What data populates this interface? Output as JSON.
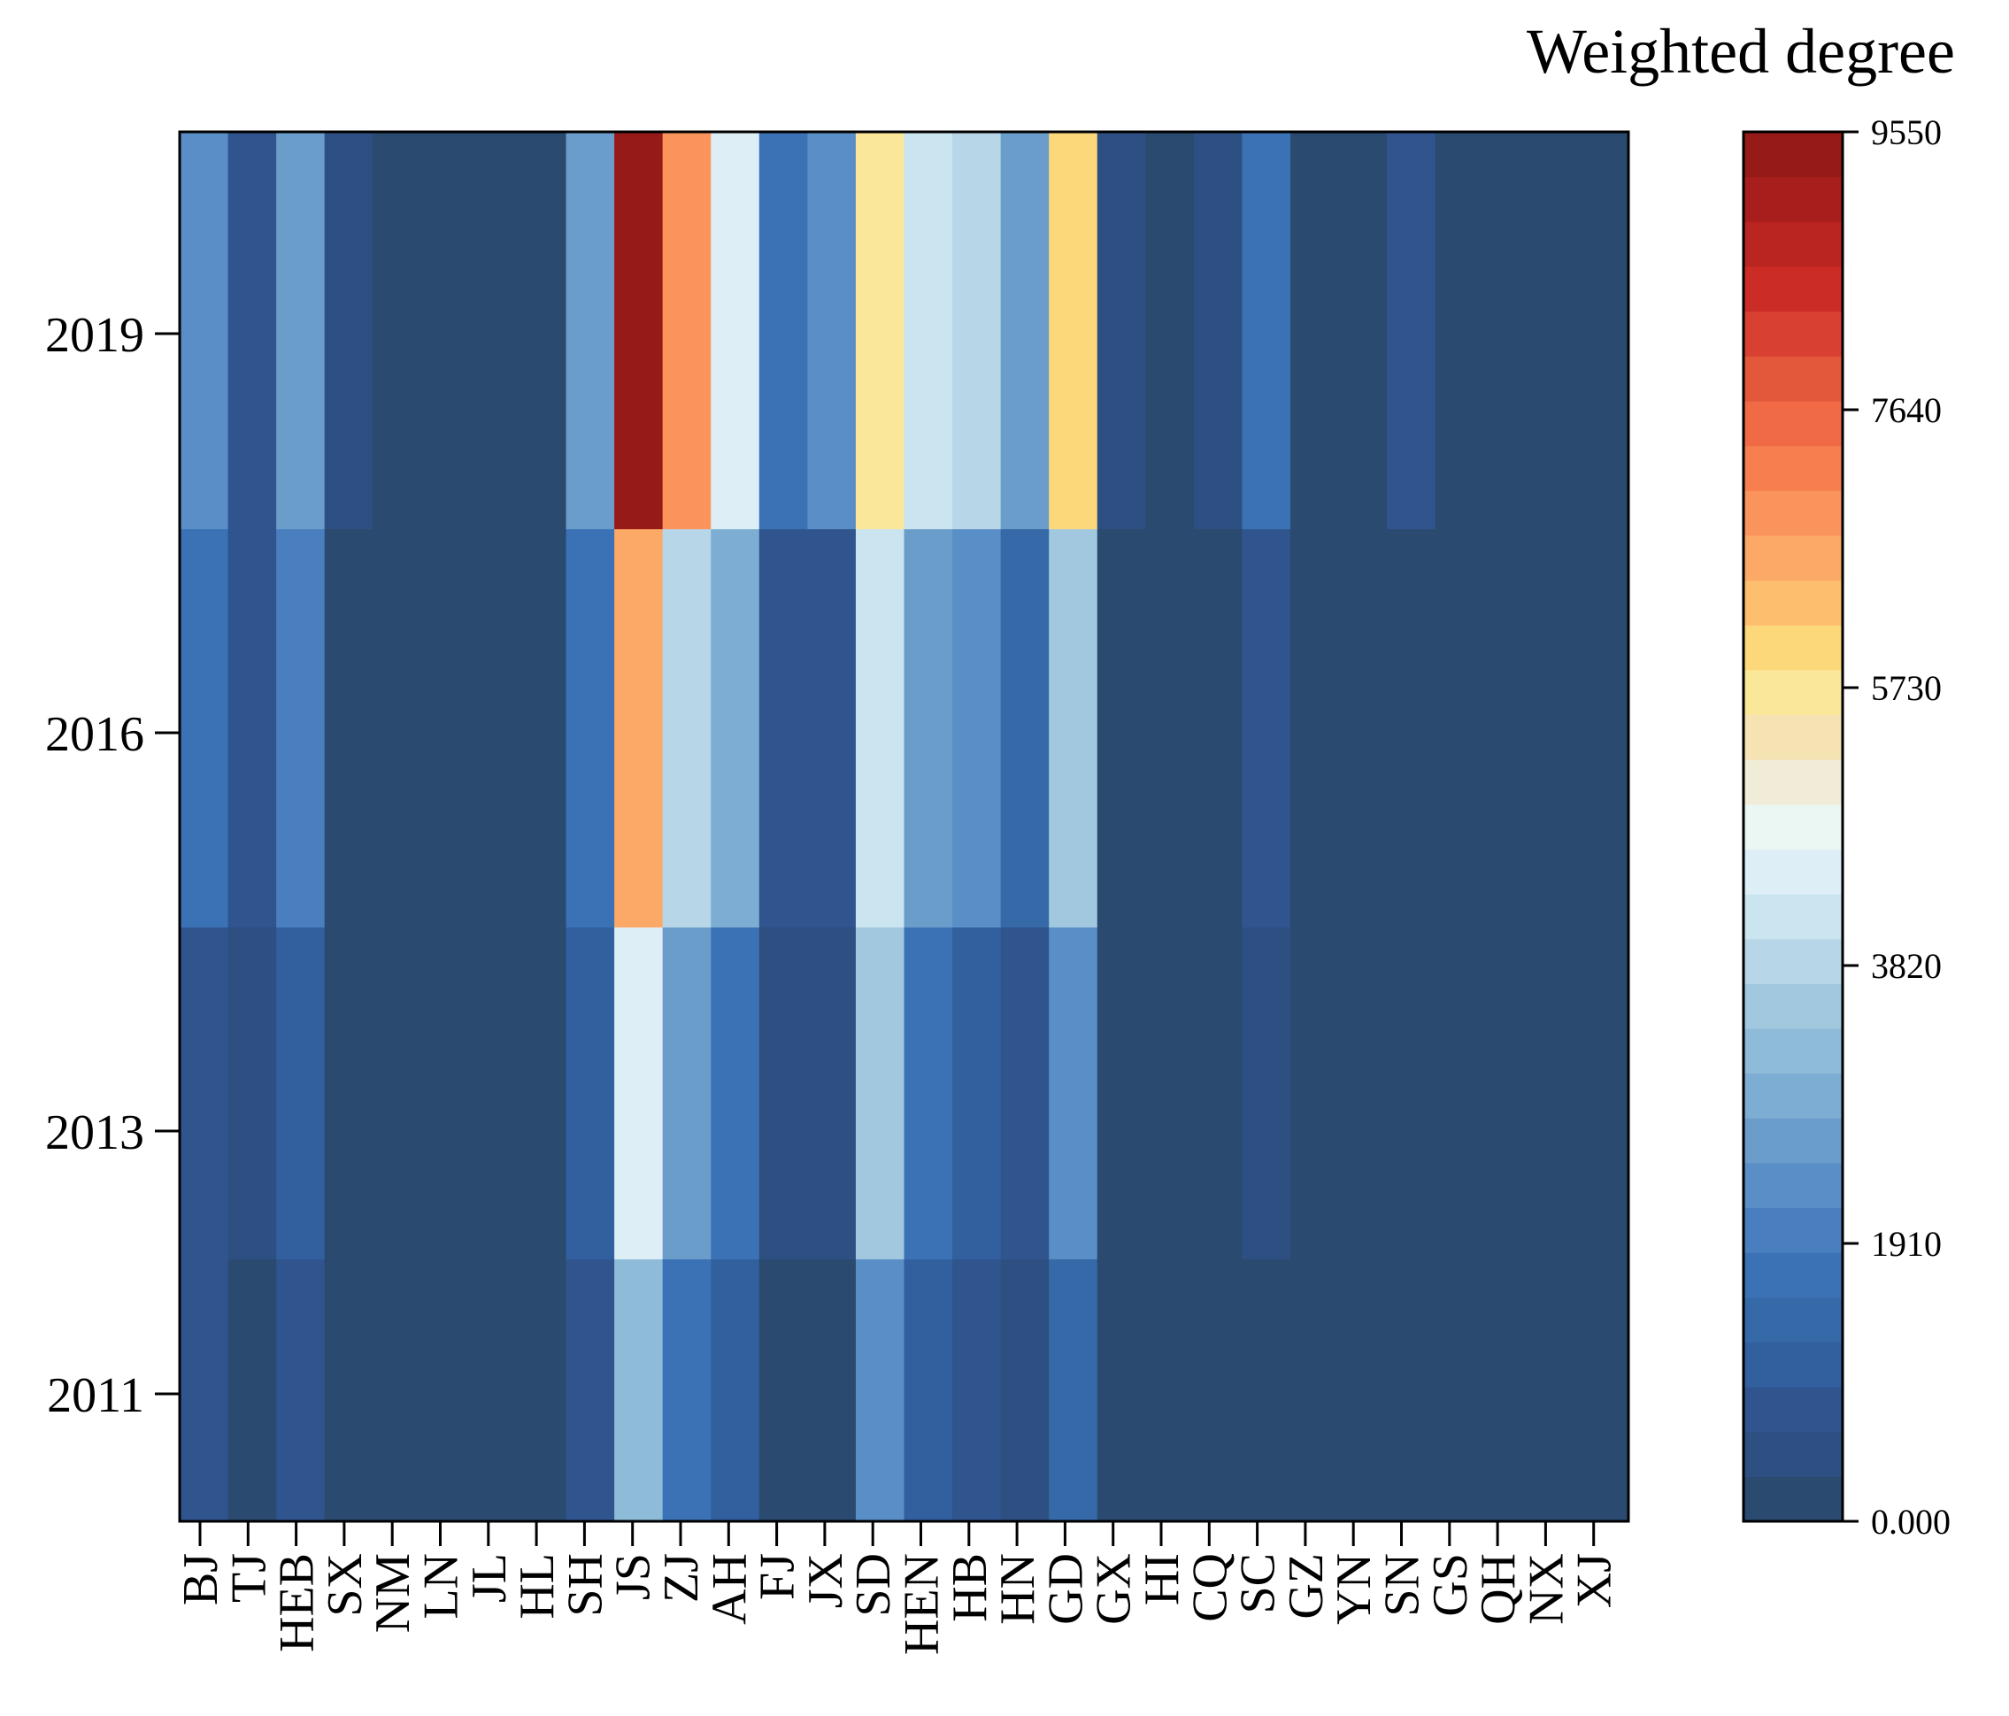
{
  "chart_data": {
    "type": "heatmap",
    "title": "",
    "colorbar_label": "Weighted degree",
    "xlabel": "",
    "ylabel": "",
    "provinces": [
      "BJ",
      "TJ",
      "HEB",
      "SX",
      "NM",
      "LN",
      "JL",
      "HL",
      "SH",
      "JS",
      "ZJ",
      "AH",
      "FJ",
      "JX",
      "SD",
      "HEN",
      "HB",
      "HN",
      "GD",
      "GX",
      "HI",
      "CQ",
      "SC",
      "GZ",
      "YN",
      "SN",
      "GS",
      "QH",
      "NX",
      "XJ"
    ],
    "y_ticks": [
      "2019",
      "2016",
      "2013",
      "2011"
    ],
    "vmin": 0,
    "vmax": 9550,
    "colorbar_ticks": [
      "9550",
      "7640",
      "5730",
      "3820",
      "1910",
      "0.000"
    ],
    "colorbar_tick_values": [
      9550,
      7640,
      5730,
      3820,
      1910,
      0
    ],
    "colorbar_colors": [
      "#2a4a70",
      "#2d4f82",
      "#30548e",
      "#32609e",
      "#3569a8",
      "#3b72b5",
      "#4a7fbf",
      "#5a8ec6",
      "#6b9dcb",
      "#7dadd2",
      "#8ebbd8",
      "#a2c8df",
      "#b7d6e8",
      "#cbe5f0",
      "#ddeef6",
      "#ebf7f3",
      "#f1ecd8",
      "#f5e3b4",
      "#fae79a",
      "#fdd87a",
      "#fdbe6e",
      "#fca866",
      "#fb945c",
      "#f77e4e",
      "#f06a45",
      "#e3573a",
      "#d84032",
      "#cc2c26",
      "#ba2521",
      "#a81e1c",
      "#961a18"
    ],
    "rows": [
      {
        "label": "2019",
        "values": [
          2350,
          760,
          2550,
          380,
          60,
          300,
          60,
          60,
          2600,
          9500,
          6800,
          4500,
          1700,
          2200,
          5800,
          4200,
          3850,
          2550,
          6000,
          350,
          60,
          500,
          1700,
          300,
          60,
          700,
          0,
          0,
          0,
          0
        ]
      },
      {
        "label": "2016",
        "values": [
          1800,
          780,
          1900,
          200,
          60,
          250,
          60,
          60,
          1800,
          6500,
          3900,
          3000,
          750,
          750,
          4250,
          2500,
          2250,
          1500,
          3400,
          60,
          60,
          200,
          800,
          60,
          60,
          300,
          0,
          0,
          0,
          0
        ]
      },
      {
        "label": "2013",
        "values": [
          800,
          450,
          1200,
          200,
          60,
          250,
          60,
          60,
          1100,
          4500,
          2500,
          1600,
          450,
          450,
          3500,
          1700,
          1100,
          800,
          2300,
          60,
          60,
          250,
          500,
          60,
          60,
          300,
          0,
          0,
          0,
          0
        ]
      },
      {
        "label": "2011",
        "values": [
          750,
          300,
          850,
          200,
          60,
          250,
          60,
          60,
          700,
          3300,
          1700,
          1050,
          300,
          300,
          2200,
          1050,
          750,
          450,
          1400,
          60,
          60,
          60,
          300,
          60,
          60,
          60,
          0,
          0,
          0,
          0
        ]
      }
    ]
  }
}
